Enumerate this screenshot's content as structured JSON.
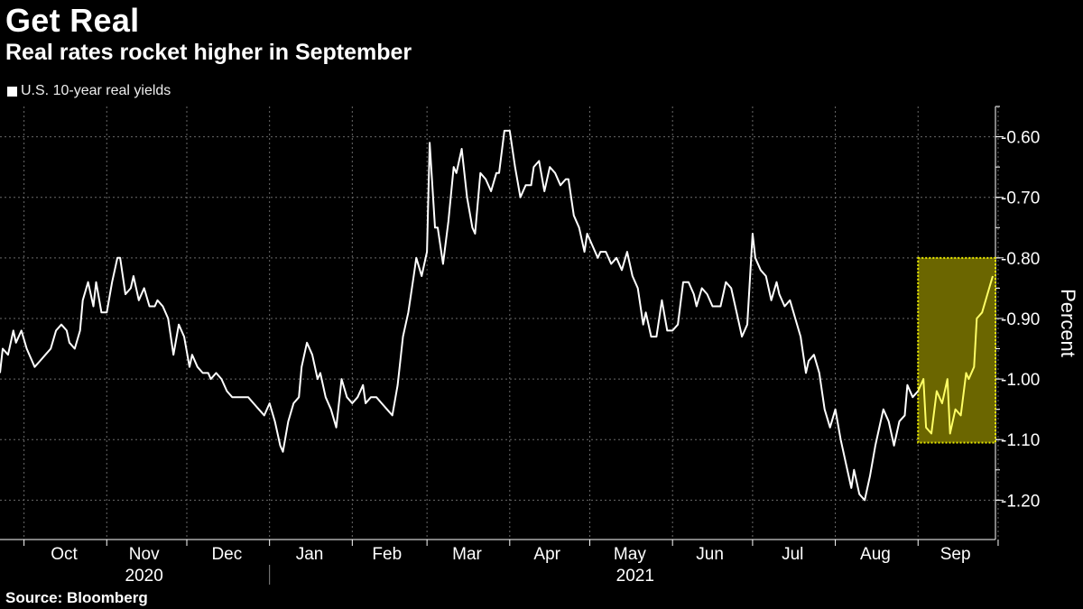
{
  "header": {
    "title": "Get Real",
    "subtitle": "Real rates rocket higher in September"
  },
  "footer": {
    "source": "Source: Bloomberg"
  },
  "colors": {
    "background": "#000000",
    "line": "#ffffff",
    "highlight_line": "#ffff66",
    "highlight_fill": "#6b6600",
    "highlight_border": "#e8e800"
  },
  "chart_data": {
    "type": "line",
    "title": "",
    "xlabel": "",
    "ylabel": "Percent",
    "y_axis_side": "right",
    "y_inverted": true,
    "ylim": [
      -0.55,
      -1.265
    ],
    "yticks": [
      -0.6,
      -0.7,
      -0.8,
      -0.9,
      -1.0,
      -1.1,
      -1.2
    ],
    "ytick_labels": [
      "-0.60",
      "-0.70",
      "-0.80",
      "-0.90",
      "-1.00",
      "-1.10",
      "-1.20"
    ],
    "grid": true,
    "legend": "top-left",
    "xlim": [
      "2020-09-22",
      "2021-09-30"
    ],
    "month_labels": [
      {
        "date": "2020-10-16",
        "label": "Oct"
      },
      {
        "date": "2020-11-15",
        "label": "Nov"
      },
      {
        "date": "2020-12-16",
        "label": "Dec"
      },
      {
        "date": "2021-01-16",
        "label": "Jan"
      },
      {
        "date": "2021-02-14",
        "label": "Feb"
      },
      {
        "date": "2021-03-16",
        "label": "Mar"
      },
      {
        "date": "2021-04-15",
        "label": "Apr"
      },
      {
        "date": "2021-05-16",
        "label": "May"
      },
      {
        "date": "2021-06-15",
        "label": "Jun"
      },
      {
        "date": "2021-07-16",
        "label": "Jul"
      },
      {
        "date": "2021-08-16",
        "label": "Aug"
      },
      {
        "date": "2021-09-15",
        "label": "Sep"
      }
    ],
    "month_boundaries": [
      "2020-10-01",
      "2020-11-01",
      "2020-12-01",
      "2021-01-01",
      "2021-02-01",
      "2021-03-01",
      "2021-04-01",
      "2021-05-01",
      "2021-06-01",
      "2021-07-01",
      "2021-08-01",
      "2021-09-01",
      "2021-10-01"
    ],
    "year_labels": [
      {
        "date": "2020-11-15",
        "label": "2020"
      },
      {
        "date": "2021-05-18",
        "label": "2021"
      }
    ],
    "year_divider": "2021-01-01",
    "highlight": {
      "x": [
        "2021-09-01",
        "2021-09-30"
      ],
      "y": [
        -0.8,
        -1.105
      ]
    },
    "series": [
      {
        "name": "U.S. 10-year real yields",
        "points": [
          [
            "2020-09-22",
            -0.99
          ],
          [
            "2020-09-23",
            -0.95
          ],
          [
            "2020-09-25",
            -0.96
          ],
          [
            "2020-09-27",
            -0.92
          ],
          [
            "2020-09-28",
            -0.94
          ],
          [
            "2020-09-30",
            -0.92
          ],
          [
            "2020-10-02",
            -0.95
          ],
          [
            "2020-10-04",
            -0.97
          ],
          [
            "2020-10-05",
            -0.98
          ],
          [
            "2020-10-07",
            -0.97
          ],
          [
            "2020-10-09",
            -0.96
          ],
          [
            "2020-10-11",
            -0.95
          ],
          [
            "2020-10-13",
            -0.92
          ],
          [
            "2020-10-15",
            -0.91
          ],
          [
            "2020-10-17",
            -0.92
          ],
          [
            "2020-10-18",
            -0.94
          ],
          [
            "2020-10-20",
            -0.95
          ],
          [
            "2020-10-22",
            -0.92
          ],
          [
            "2020-10-23",
            -0.87
          ],
          [
            "2020-10-25",
            -0.84
          ],
          [
            "2020-10-27",
            -0.88
          ],
          [
            "2020-10-28",
            -0.84
          ],
          [
            "2020-10-30",
            -0.89
          ],
          [
            "2020-11-01",
            -0.89
          ],
          [
            "2020-11-03",
            -0.84
          ],
          [
            "2020-11-05",
            -0.8
          ],
          [
            "2020-11-06",
            -0.8
          ],
          [
            "2020-11-08",
            -0.86
          ],
          [
            "2020-11-10",
            -0.85
          ],
          [
            "2020-11-11",
            -0.83
          ],
          [
            "2020-11-13",
            -0.87
          ],
          [
            "2020-11-15",
            -0.85
          ],
          [
            "2020-11-17",
            -0.88
          ],
          [
            "2020-11-19",
            -0.88
          ],
          [
            "2020-11-20",
            -0.87
          ],
          [
            "2020-11-22",
            -0.88
          ],
          [
            "2020-11-24",
            -0.9
          ],
          [
            "2020-11-26",
            -0.96
          ],
          [
            "2020-11-28",
            -0.91
          ],
          [
            "2020-11-30",
            -0.93
          ],
          [
            "2020-12-02",
            -0.98
          ],
          [
            "2020-12-03",
            -0.96
          ],
          [
            "2020-12-05",
            -0.98
          ],
          [
            "2020-12-07",
            -0.99
          ],
          [
            "2020-12-09",
            -0.99
          ],
          [
            "2020-12-10",
            -1.0
          ],
          [
            "2020-12-12",
            -0.99
          ],
          [
            "2020-12-14",
            -1.0
          ],
          [
            "2020-12-16",
            -1.02
          ],
          [
            "2020-12-18",
            -1.03
          ],
          [
            "2020-12-20",
            -1.03
          ],
          [
            "2020-12-22",
            -1.03
          ],
          [
            "2020-12-24",
            -1.03
          ],
          [
            "2020-12-26",
            -1.04
          ],
          [
            "2020-12-28",
            -1.05
          ],
          [
            "2020-12-30",
            -1.06
          ],
          [
            "2021-01-01",
            -1.04
          ],
          [
            "2021-01-03",
            -1.07
          ],
          [
            "2021-01-05",
            -1.11
          ],
          [
            "2021-01-06",
            -1.12
          ],
          [
            "2021-01-08",
            -1.07
          ],
          [
            "2021-01-10",
            -1.04
          ],
          [
            "2021-01-12",
            -1.03
          ],
          [
            "2021-01-13",
            -0.98
          ],
          [
            "2021-01-15",
            -0.94
          ],
          [
            "2021-01-17",
            -0.96
          ],
          [
            "2021-01-19",
            -1.0
          ],
          [
            "2021-01-20",
            -0.99
          ],
          [
            "2021-01-22",
            -1.03
          ],
          [
            "2021-01-24",
            -1.05
          ],
          [
            "2021-01-26",
            -1.08
          ],
          [
            "2021-01-28",
            -1.0
          ],
          [
            "2021-01-30",
            -1.03
          ],
          [
            "2021-02-01",
            -1.04
          ],
          [
            "2021-02-03",
            -1.03
          ],
          [
            "2021-02-05",
            -1.01
          ],
          [
            "2021-02-06",
            -1.04
          ],
          [
            "2021-02-08",
            -1.03
          ],
          [
            "2021-02-10",
            -1.03
          ],
          [
            "2021-02-12",
            -1.04
          ],
          [
            "2021-02-14",
            -1.05
          ],
          [
            "2021-02-16",
            -1.06
          ],
          [
            "2021-02-18",
            -1.01
          ],
          [
            "2021-02-20",
            -0.93
          ],
          [
            "2021-02-22",
            -0.89
          ],
          [
            "2021-02-24",
            -0.83
          ],
          [
            "2021-02-25",
            -0.8
          ],
          [
            "2021-02-27",
            -0.83
          ],
          [
            "2021-03-01",
            -0.79
          ],
          [
            "2021-03-02",
            -0.61
          ],
          [
            "2021-03-04",
            -0.75
          ],
          [
            "2021-03-05",
            -0.75
          ],
          [
            "2021-03-07",
            -0.81
          ],
          [
            "2021-03-09",
            -0.74
          ],
          [
            "2021-03-11",
            -0.65
          ],
          [
            "2021-03-12",
            -0.66
          ],
          [
            "2021-03-14",
            -0.62
          ],
          [
            "2021-03-16",
            -0.7
          ],
          [
            "2021-03-18",
            -0.75
          ],
          [
            "2021-03-19",
            -0.76
          ],
          [
            "2021-03-21",
            -0.66
          ],
          [
            "2021-03-23",
            -0.67
          ],
          [
            "2021-03-25",
            -0.69
          ],
          [
            "2021-03-27",
            -0.66
          ],
          [
            "2021-03-28",
            -0.66
          ],
          [
            "2021-03-30",
            -0.59
          ],
          [
            "2021-04-01",
            -0.59
          ],
          [
            "2021-04-03",
            -0.65
          ],
          [
            "2021-04-05",
            -0.7
          ],
          [
            "2021-04-07",
            -0.68
          ],
          [
            "2021-04-09",
            -0.68
          ],
          [
            "2021-04-10",
            -0.65
          ],
          [
            "2021-04-12",
            -0.64
          ],
          [
            "2021-04-14",
            -0.69
          ],
          [
            "2021-04-16",
            -0.65
          ],
          [
            "2021-04-18",
            -0.66
          ],
          [
            "2021-04-20",
            -0.68
          ],
          [
            "2021-04-22",
            -0.67
          ],
          [
            "2021-04-23",
            -0.67
          ],
          [
            "2021-04-25",
            -0.73
          ],
          [
            "2021-04-27",
            -0.75
          ],
          [
            "2021-04-29",
            -0.79
          ],
          [
            "2021-04-30",
            -0.76
          ],
          [
            "2021-05-02",
            -0.78
          ],
          [
            "2021-05-04",
            -0.8
          ],
          [
            "2021-05-05",
            -0.79
          ],
          [
            "2021-05-07",
            -0.79
          ],
          [
            "2021-05-09",
            -0.81
          ],
          [
            "2021-05-11",
            -0.8
          ],
          [
            "2021-05-13",
            -0.82
          ],
          [
            "2021-05-15",
            -0.79
          ],
          [
            "2021-05-17",
            -0.83
          ],
          [
            "2021-05-19",
            -0.85
          ],
          [
            "2021-05-21",
            -0.91
          ],
          [
            "2021-05-22",
            -0.89
          ],
          [
            "2021-05-24",
            -0.93
          ],
          [
            "2021-05-26",
            -0.93
          ],
          [
            "2021-05-28",
            -0.87
          ],
          [
            "2021-05-30",
            -0.92
          ],
          [
            "2021-06-01",
            -0.92
          ],
          [
            "2021-06-03",
            -0.91
          ],
          [
            "2021-06-05",
            -0.84
          ],
          [
            "2021-06-07",
            -0.84
          ],
          [
            "2021-06-09",
            -0.86
          ],
          [
            "2021-06-10",
            -0.88
          ],
          [
            "2021-06-12",
            -0.85
          ],
          [
            "2021-06-14",
            -0.86
          ],
          [
            "2021-06-16",
            -0.88
          ],
          [
            "2021-06-18",
            -0.88
          ],
          [
            "2021-06-19",
            -0.88
          ],
          [
            "2021-06-21",
            -0.84
          ],
          [
            "2021-06-23",
            -0.85
          ],
          [
            "2021-06-25",
            -0.89
          ],
          [
            "2021-06-27",
            -0.93
          ],
          [
            "2021-06-29",
            -0.91
          ],
          [
            "2021-07-01",
            -0.76
          ],
          [
            "2021-07-02",
            -0.8
          ],
          [
            "2021-07-04",
            -0.82
          ],
          [
            "2021-07-06",
            -0.83
          ],
          [
            "2021-07-08",
            -0.87
          ],
          [
            "2021-07-10",
            -0.84
          ],
          [
            "2021-07-11",
            -0.86
          ],
          [
            "2021-07-13",
            -0.88
          ],
          [
            "2021-07-15",
            -0.87
          ],
          [
            "2021-07-17",
            -0.9
          ],
          [
            "2021-07-19",
            -0.93
          ],
          [
            "2021-07-21",
            -0.99
          ],
          [
            "2021-07-22",
            -0.97
          ],
          [
            "2021-07-24",
            -0.96
          ],
          [
            "2021-07-26",
            -0.99
          ],
          [
            "2021-07-28",
            -1.05
          ],
          [
            "2021-07-30",
            -1.08
          ],
          [
            "2021-08-01",
            -1.05
          ],
          [
            "2021-08-03",
            -1.1
          ],
          [
            "2021-08-05",
            -1.14
          ],
          [
            "2021-08-07",
            -1.18
          ],
          [
            "2021-08-08",
            -1.15
          ],
          [
            "2021-08-10",
            -1.19
          ],
          [
            "2021-08-12",
            -1.2
          ],
          [
            "2021-08-14",
            -1.16
          ],
          [
            "2021-08-16",
            -1.11
          ],
          [
            "2021-08-18",
            -1.07
          ],
          [
            "2021-08-19",
            -1.05
          ],
          [
            "2021-08-21",
            -1.07
          ],
          [
            "2021-08-23",
            -1.11
          ],
          [
            "2021-08-25",
            -1.07
          ],
          [
            "2021-08-27",
            -1.06
          ],
          [
            "2021-08-28",
            -1.01
          ],
          [
            "2021-08-30",
            -1.03
          ],
          [
            "2021-09-01",
            -1.02
          ],
          [
            "2021-09-03",
            -1.0
          ],
          [
            "2021-09-04",
            -1.08
          ],
          [
            "2021-09-06",
            -1.09
          ],
          [
            "2021-09-08",
            -1.02
          ],
          [
            "2021-09-10",
            -1.04
          ],
          [
            "2021-09-12",
            -1.0
          ],
          [
            "2021-09-13",
            -1.09
          ],
          [
            "2021-09-15",
            -1.05
          ],
          [
            "2021-09-17",
            -1.06
          ],
          [
            "2021-09-19",
            -0.99
          ],
          [
            "2021-09-20",
            -1.0
          ],
          [
            "2021-09-22",
            -0.98
          ],
          [
            "2021-09-23",
            -0.9
          ],
          [
            "2021-09-25",
            -0.89
          ],
          [
            "2021-09-27",
            -0.86
          ],
          [
            "2021-09-29",
            -0.83
          ]
        ]
      }
    ]
  }
}
